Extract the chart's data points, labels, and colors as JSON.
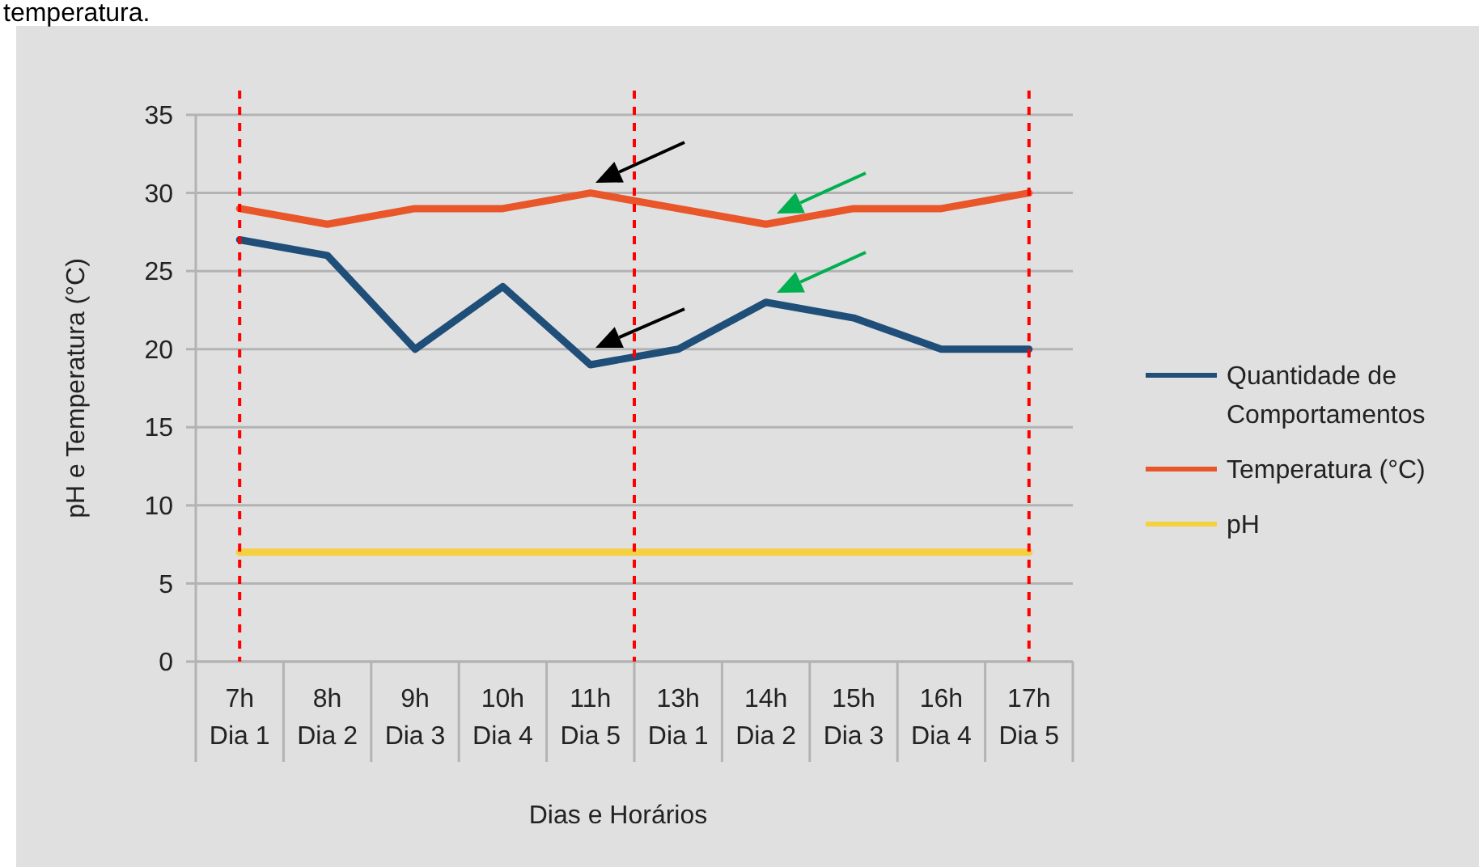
{
  "chart_data": {
    "type": "line",
    "xlabel": "Dias e Horários",
    "ylabel": "pH e Temperatura (°C)",
    "annotations": [
      "temperatura."
    ],
    "categories": [
      "7h\nDia 1",
      "8h\nDia 2",
      "9h\nDia 3",
      "10h\nDia 4",
      "11h\nDia 5",
      "13h\nDia 1",
      "14h\nDia 2",
      "15h\nDia 3",
      "16h\nDia 4",
      "17h\nDia 5"
    ],
    "series": [
      {
        "name": "Quantidade de Comportamentos",
        "color": "#1f4e79",
        "values": [
          27,
          26,
          20,
          24,
          19,
          20,
          23,
          22,
          20,
          20
        ]
      },
      {
        "name": "Temperatura (°C)",
        "color": "#e8562a",
        "values": [
          29,
          28,
          29,
          29,
          30,
          29,
          28,
          29,
          29,
          30
        ]
      },
      {
        "name": "pH",
        "color": "#f5d03f",
        "values": [
          7,
          7,
          7,
          7,
          7,
          7,
          7,
          7,
          7,
          7
        ]
      }
    ],
    "ylim": [
      0,
      35
    ],
    "yticks": [
      0,
      5,
      10,
      15,
      20,
      25,
      30,
      35
    ],
    "grid": "y",
    "legend": "right",
    "marker": "none",
    "line_style": "solid",
    "ref_lines": [
      {
        "axis": "x",
        "value": "7h\nDia 1",
        "color": "#ff0000",
        "line_style": "dashed"
      },
      {
        "axis": "x",
        "value": "17h\nDia 5",
        "color": "#ff0000",
        "line_style": "dashed"
      }
    ]
  }
}
